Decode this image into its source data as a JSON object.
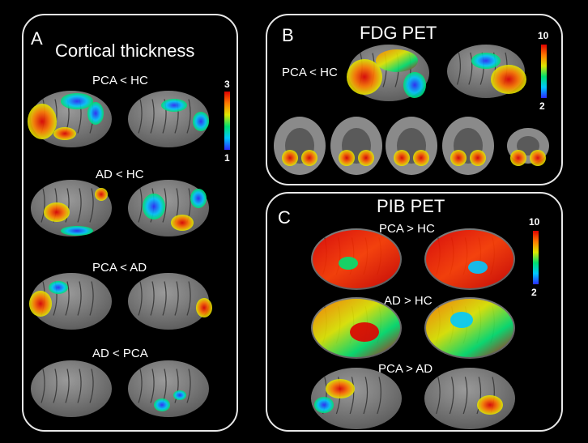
{
  "colors": {
    "background": "#000000",
    "panel_border": "#e8e8e8",
    "cortex": "#7f7f7f",
    "colormap": [
      "#2a2aff",
      "#00c8ff",
      "#00e070",
      "#dfe800",
      "#ff7a00",
      "#e00000"
    ]
  },
  "panel_a": {
    "letter": "A",
    "title": "Cortical  thickness",
    "colorbar": {
      "max": "3",
      "min": "1"
    },
    "rows": [
      {
        "label": "PCA < HC"
      },
      {
        "label": "AD < HC"
      },
      {
        "label": "PCA < AD"
      },
      {
        "label": "AD < PCA"
      }
    ]
  },
  "panel_b": {
    "letter": "B",
    "title": "FDG PET",
    "label": "PCA < HC",
    "colorbar": {
      "max": "10",
      "min": "2"
    }
  },
  "panel_c": {
    "letter": "C",
    "title": "PIB PET",
    "colorbar": {
      "max": "10",
      "min": "2"
    },
    "rows": [
      {
        "label": "PCA > HC"
      },
      {
        "label": "AD > HC"
      },
      {
        "label": "PCA > AD"
      }
    ]
  }
}
